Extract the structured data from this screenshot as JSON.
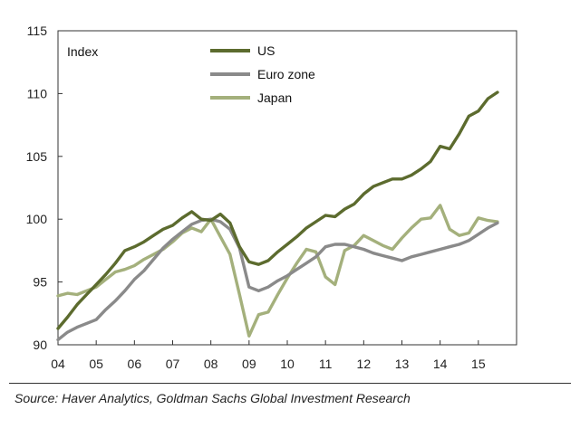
{
  "chart_data": {
    "type": "line",
    "title": "",
    "ylabel": "Index",
    "xlabel": "",
    "xlim": [
      2004,
      2016
    ],
    "ylim": [
      90,
      115
    ],
    "yticks": [
      90,
      95,
      100,
      105,
      110,
      115
    ],
    "xticks": [
      {
        "value": 2004,
        "label": "04"
      },
      {
        "value": 2005,
        "label": "05"
      },
      {
        "value": 2006,
        "label": "06"
      },
      {
        "value": 2007,
        "label": "07"
      },
      {
        "value": 2008,
        "label": "08"
      },
      {
        "value": 2009,
        "label": "09"
      },
      {
        "value": 2010,
        "label": "10"
      },
      {
        "value": 2011,
        "label": "11"
      },
      {
        "value": 2012,
        "label": "12"
      },
      {
        "value": 2013,
        "label": "13"
      },
      {
        "value": 2014,
        "label": "14"
      },
      {
        "value": 2015,
        "label": "15"
      }
    ],
    "grid": false,
    "legend": "top-center",
    "series": [
      {
        "name": "US",
        "color": "#5c6b2e",
        "x": [
          2004.0,
          2004.25,
          2004.5,
          2004.75,
          2005.0,
          2005.25,
          2005.5,
          2005.75,
          2006.0,
          2006.25,
          2006.5,
          2006.75,
          2007.0,
          2007.25,
          2007.5,
          2007.75,
          2008.0,
          2008.25,
          2008.5,
          2008.75,
          2009.0,
          2009.25,
          2009.5,
          2009.75,
          2010.0,
          2010.25,
          2010.5,
          2010.75,
          2011.0,
          2011.25,
          2011.5,
          2011.75,
          2012.0,
          2012.25,
          2012.5,
          2012.75,
          2013.0,
          2013.25,
          2013.5,
          2013.75,
          2014.0,
          2014.25,
          2014.5,
          2014.75,
          2015.0,
          2015.25,
          2015.5
        ],
        "values": [
          91.3,
          92.2,
          93.2,
          94.0,
          94.8,
          95.6,
          96.5,
          97.5,
          97.8,
          98.2,
          98.7,
          99.2,
          99.5,
          100.1,
          100.6,
          100.0,
          99.9,
          100.4,
          99.7,
          97.8,
          96.6,
          96.4,
          96.7,
          97.4,
          98.0,
          98.6,
          99.3,
          99.8,
          100.3,
          100.2,
          100.8,
          101.2,
          102.0,
          102.6,
          102.9,
          103.2,
          103.2,
          103.5,
          104.0,
          104.6,
          105.8,
          105.6,
          106.8,
          108.2,
          108.6,
          109.6,
          110.1
        ]
      },
      {
        "name": "Euro zone",
        "color": "#8a8a8a",
        "x": [
          2004.0,
          2004.25,
          2004.5,
          2004.75,
          2005.0,
          2005.25,
          2005.5,
          2005.75,
          2006.0,
          2006.25,
          2006.5,
          2006.75,
          2007.0,
          2007.25,
          2007.5,
          2007.75,
          2008.0,
          2008.25,
          2008.5,
          2008.75,
          2009.0,
          2009.25,
          2009.5,
          2009.75,
          2010.0,
          2010.25,
          2010.5,
          2010.75,
          2011.0,
          2011.25,
          2011.5,
          2011.75,
          2012.0,
          2012.25,
          2012.5,
          2012.75,
          2013.0,
          2013.25,
          2013.5,
          2013.75,
          2014.0,
          2014.25,
          2014.5,
          2014.75,
          2015.0,
          2015.25,
          2015.5
        ],
        "values": [
          90.4,
          91.0,
          91.4,
          91.7,
          92.0,
          92.8,
          93.5,
          94.3,
          95.2,
          95.9,
          96.8,
          97.7,
          98.4,
          99.0,
          99.6,
          99.9,
          100.0,
          99.8,
          99.2,
          97.7,
          94.6,
          94.3,
          94.6,
          95.1,
          95.5,
          96.0,
          96.5,
          97.0,
          97.8,
          98.0,
          98.0,
          97.8,
          97.6,
          97.3,
          97.1,
          96.9,
          96.7,
          97.0,
          97.2,
          97.4,
          97.6,
          97.8,
          98.0,
          98.3,
          98.8,
          99.3,
          99.7
        ]
      },
      {
        "name": "Japan",
        "color": "#a4b07c",
        "x": [
          2004.0,
          2004.25,
          2004.5,
          2004.75,
          2005.0,
          2005.25,
          2005.5,
          2005.75,
          2006.0,
          2006.25,
          2006.5,
          2006.75,
          2007.0,
          2007.25,
          2007.5,
          2007.75,
          2008.0,
          2008.25,
          2008.5,
          2008.75,
          2009.0,
          2009.25,
          2009.5,
          2009.75,
          2010.0,
          2010.25,
          2010.5,
          2010.75,
          2011.0,
          2011.25,
          2011.5,
          2011.75,
          2012.0,
          2012.25,
          2012.5,
          2012.75,
          2013.0,
          2013.25,
          2013.5,
          2013.75,
          2014.0,
          2014.25,
          2014.5,
          2014.75,
          2015.0,
          2015.25,
          2015.5
        ],
        "values": [
          93.9,
          94.1,
          94.0,
          94.3,
          94.6,
          95.2,
          95.8,
          96.0,
          96.3,
          96.8,
          97.2,
          97.6,
          98.2,
          98.9,
          99.3,
          99.0,
          100.0,
          98.6,
          97.2,
          94.0,
          90.7,
          92.4,
          92.6,
          94.0,
          95.3,
          96.5,
          97.6,
          97.4,
          95.4,
          94.8,
          97.5,
          97.9,
          98.7,
          98.3,
          97.9,
          97.6,
          98.5,
          99.3,
          100.0,
          100.1,
          101.1,
          99.2,
          98.7,
          98.9,
          100.1,
          99.9,
          99.8
        ]
      }
    ],
    "source": "Source: Haver Analytics, Goldman Sachs Global Investment Research"
  }
}
